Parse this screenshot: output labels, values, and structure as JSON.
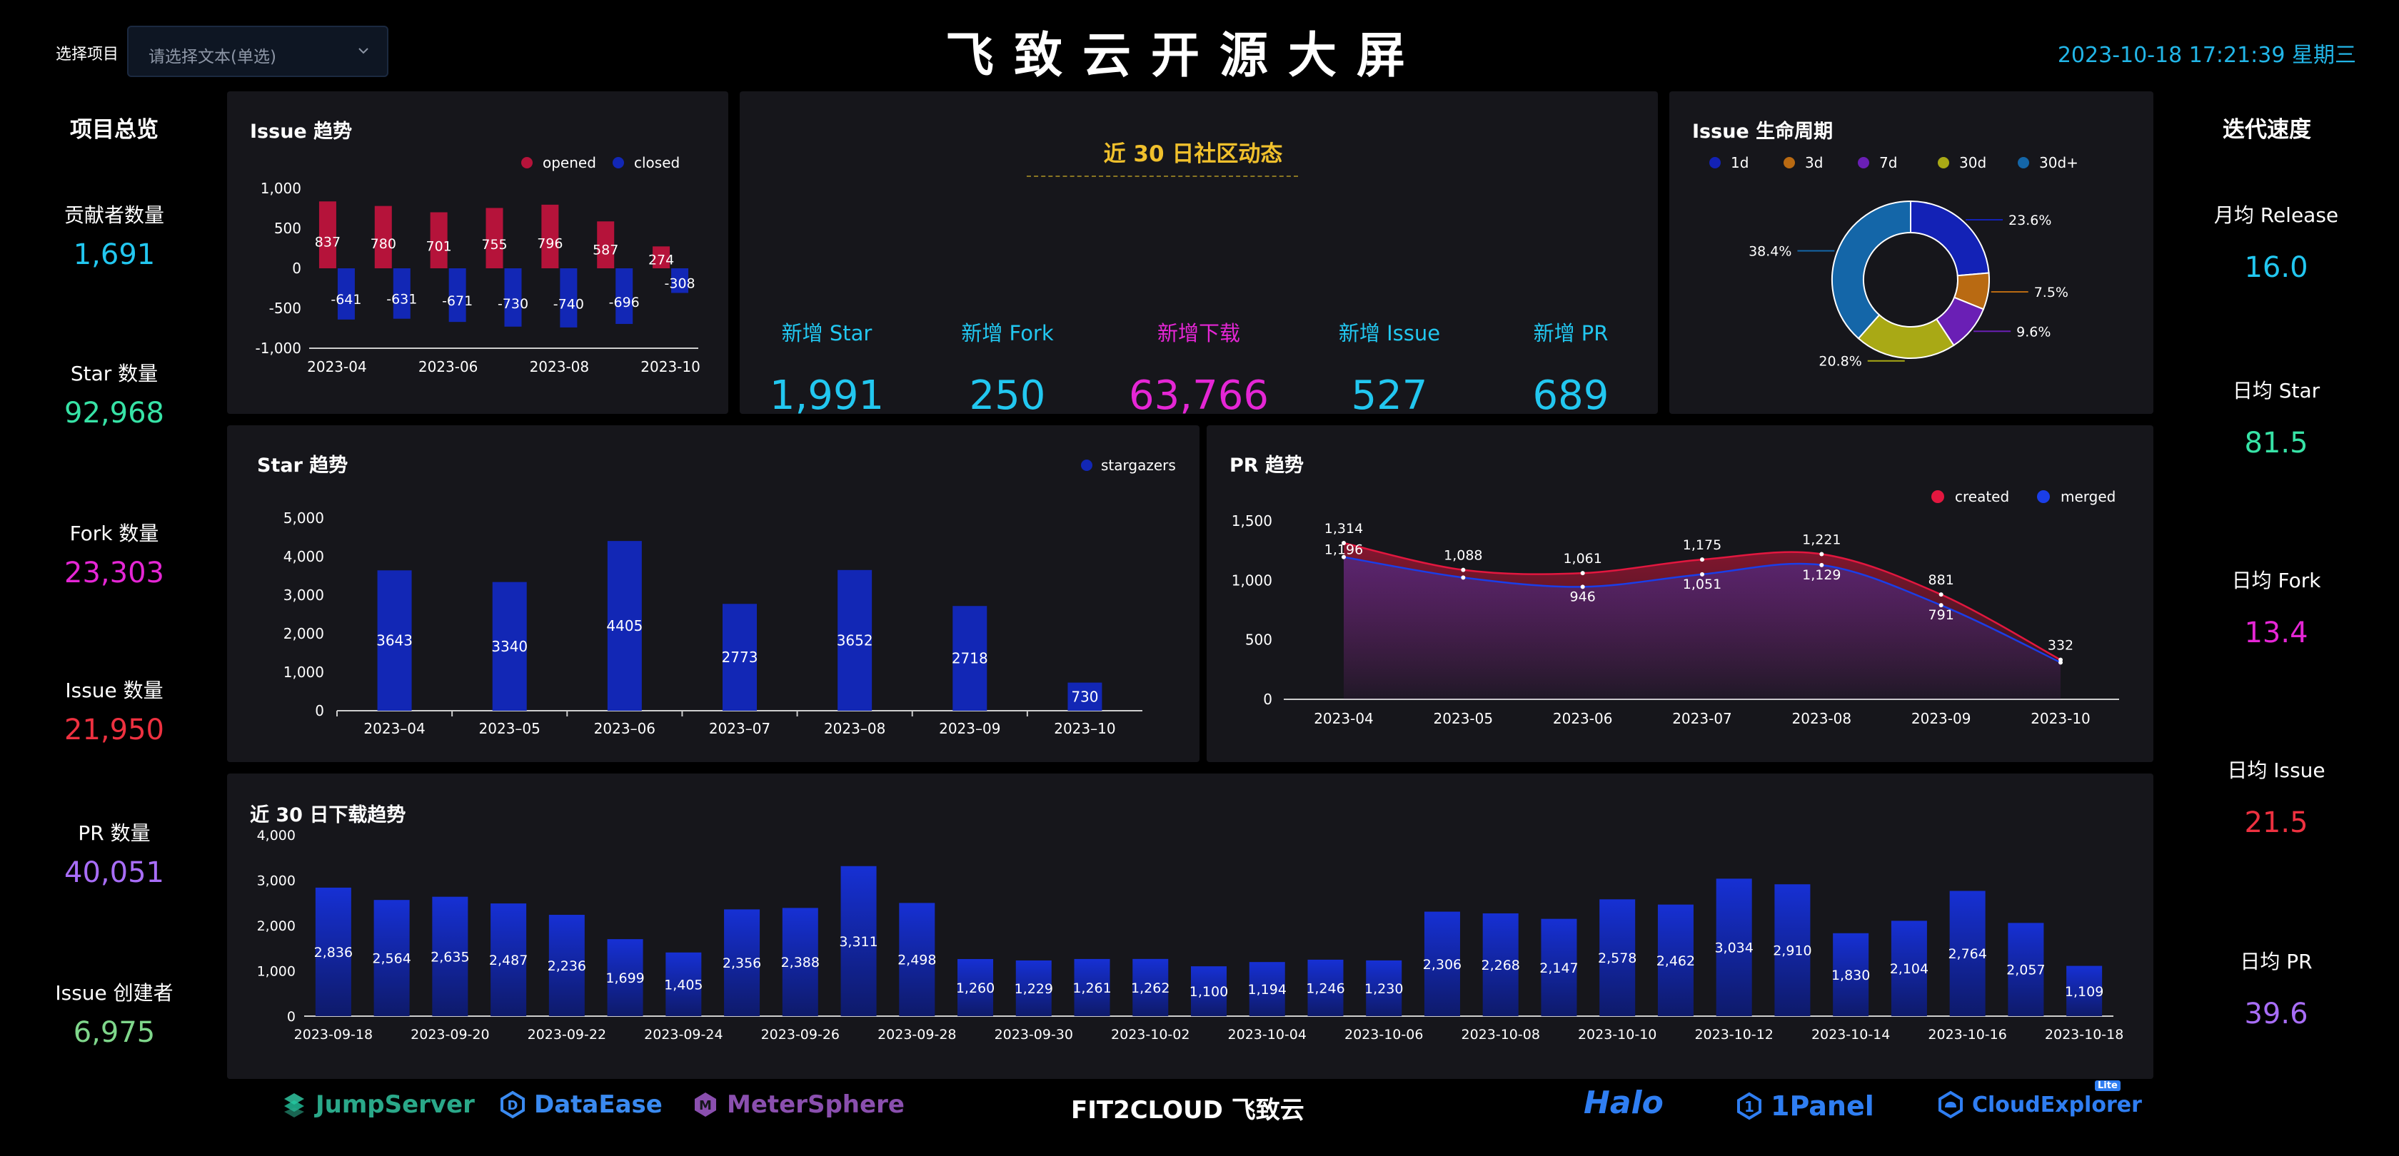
{
  "header": {
    "select_label": "选择项目",
    "select_placeholder": "请选择文本(单选)",
    "title": "飞致云开源大屏",
    "datetime": "2023-10-18 17:21:39 星期三"
  },
  "left_sidebar": {
    "heading": "项目总览",
    "stats": [
      {
        "label": "贡献者数量",
        "value": "1,691",
        "color": "#22c7f0"
      },
      {
        "label": "Star 数量",
        "value": "92,968",
        "color": "#37e3a6"
      },
      {
        "label": "Fork 数量",
        "value": "23,303",
        "color": "#e526d5"
      },
      {
        "label": "Issue 数量",
        "value": "21,950",
        "color": "#ee3140"
      },
      {
        "label": "PR 数量",
        "value": "40,051",
        "color": "#a86df8"
      },
      {
        "label": "Issue 创建者",
        "value": "6,975",
        "color": "#7fd78b"
      }
    ]
  },
  "right_sidebar": {
    "heading": "迭代速度",
    "stats": [
      {
        "label": "月均 Release",
        "value": "16.0",
        "color": "#22c7f0"
      },
      {
        "label": "日均 Star",
        "value": "81.5",
        "color": "#37e3a6"
      },
      {
        "label": "日均 Fork",
        "value": "13.4",
        "color": "#e526d5"
      },
      {
        "label": "日均 Issue",
        "value": "21.5",
        "color": "#ee3140"
      },
      {
        "label": "日均 PR",
        "value": "39.6",
        "color": "#a86df8"
      }
    ]
  },
  "community": {
    "title": "近 30 日社区动态",
    "items": [
      {
        "label": "新增 Star",
        "value": "1,991",
        "color": "#22c7f0"
      },
      {
        "label": "新增 Fork",
        "value": "250",
        "color": "#22c7f0"
      },
      {
        "label": "新增下载",
        "value": "63,766",
        "color": "#e526d5"
      },
      {
        "label": "新增 Issue",
        "value": "527",
        "color": "#22c7f0"
      },
      {
        "label": "新增 PR",
        "value": "689",
        "color": "#22c7f0"
      }
    ]
  },
  "footer": {
    "brands": [
      "JumpServer",
      "DataEase",
      "MeterSphere",
      "FIT2CLOUD 飞致云",
      "Halo",
      "1Panel",
      "CloudExplorer"
    ],
    "lite_badge": "Lite"
  },
  "chart_data": [
    {
      "id": "issue-trend",
      "type": "bar",
      "title": "Issue 趋势",
      "x_tick_labels": [
        "2023-04",
        "2023-06",
        "2023-08",
        "2023-10"
      ],
      "categories": [
        "2023-04",
        "2023-05",
        "2023-06",
        "2023-07",
        "2023-08",
        "2023-09",
        "2023-10"
      ],
      "series": [
        {
          "name": "opened",
          "color": "#b5133a",
          "values": [
            837,
            780,
            701,
            755,
            796,
            587,
            274
          ]
        },
        {
          "name": "closed",
          "color": "#1227b5",
          "values": [
            -641,
            -631,
            -671,
            -730,
            -740,
            -696,
            -308
          ]
        }
      ],
      "yticks": [
        "1,000",
        "500",
        "0",
        "-500",
        "-1,000"
      ],
      "ylim": [
        -1000,
        1000
      ],
      "legend": "top-right"
    },
    {
      "id": "issue-lifecycle",
      "type": "pie",
      "title": "Issue 生命周期",
      "labels": [
        "1d",
        "3d",
        "7d",
        "30d",
        "30d+"
      ],
      "colors": [
        "#1322b6",
        "#b96a12",
        "#6a1fb5",
        "#a9a915",
        "#1466a8"
      ],
      "values": [
        23.6,
        7.5,
        9.6,
        20.8,
        38.4
      ],
      "value_labels": [
        "23.6%",
        "7.5%",
        "9.6%",
        "20.8%",
        "38.4%"
      ],
      "legend": "top"
    },
    {
      "id": "star-trend",
      "type": "bar",
      "title": "Star 趋势",
      "categories": [
        "2023–04",
        "2023–05",
        "2023–06",
        "2023–07",
        "2023–08",
        "2023–09",
        "2023–10"
      ],
      "series": [
        {
          "name": "stargazers",
          "color": "#1227b5",
          "values": [
            3643,
            3340,
            4405,
            2773,
            3652,
            2718,
            730
          ]
        }
      ],
      "yticks": [
        "5,000",
        "4,000",
        "3,000",
        "2,000",
        "1,000",
        "0"
      ],
      "ylim": [
        0,
        5000
      ],
      "legend": "top-right"
    },
    {
      "id": "pr-trend",
      "type": "area",
      "title": "PR 趋势",
      "categories": [
        "2023-04",
        "2023-05",
        "2023-06",
        "2023-07",
        "2023-08",
        "2023-09",
        "2023-10"
      ],
      "series": [
        {
          "name": "created",
          "color": "#e2173f",
          "values": [
            1314,
            1088,
            1061,
            1175,
            1221,
            881,
            332
          ],
          "labels": [
            "1,314",
            "1,088",
            "1,061",
            "1,175",
            "1,221",
            "881",
            "332"
          ]
        },
        {
          "name": "merged",
          "color": "#1a3ee8",
          "values": [
            1196,
            1024,
            946,
            1051,
            1129,
            791,
            310
          ],
          "labels": [
            "1,196",
            "",
            "946",
            "1,051",
            "1,129",
            "791",
            ""
          ]
        }
      ],
      "yticks": [
        "1,500",
        "1,000",
        "500",
        "0"
      ],
      "ylim": [
        0,
        1500
      ],
      "legend": "top-right"
    },
    {
      "id": "download-trend",
      "type": "bar",
      "title": "近 30 日下载趋势",
      "categories": [
        "2023-09-18",
        "2023-09-19",
        "2023-09-20",
        "2023-09-21",
        "2023-09-22",
        "2023-09-23",
        "2023-09-24",
        "2023-09-25",
        "2023-09-26",
        "2023-09-27",
        "2023-09-28",
        "2023-09-29",
        "2023-09-30",
        "2023-10-01",
        "2023-10-02",
        "2023-10-03",
        "2023-10-04",
        "2023-10-05",
        "2023-10-06",
        "2023-10-07",
        "2023-10-08",
        "2023-10-09",
        "2023-10-10",
        "2023-10-11",
        "2023-10-12",
        "2023-10-13",
        "2023-10-14",
        "2023-10-15",
        "2023-10-16",
        "2023-10-17",
        "2023-10-18"
      ],
      "x_tick_labels": [
        "2023-09-18",
        "2023-09-20",
        "2023-09-22",
        "2023-09-24",
        "2023-09-26",
        "2023-09-28",
        "2023-09-30",
        "2023-10-02",
        "2023-10-04",
        "2023-10-06",
        "2023-10-08",
        "2023-10-10",
        "2023-10-12",
        "2023-10-14",
        "2023-10-16",
        "2023-10-18"
      ],
      "series": [
        {
          "name": "downloads",
          "color": "#1227b5",
          "values": [
            2836,
            2564,
            2635,
            2487,
            2236,
            1699,
            1405,
            2356,
            2388,
            3311,
            2498,
            1260,
            1229,
            1261,
            1262,
            1100,
            1194,
            1246,
            1230,
            2306,
            2268,
            2147,
            2578,
            2462,
            3034,
            2910,
            1830,
            2104,
            2764,
            2057,
            1109
          ]
        }
      ],
      "yticks": [
        "4,000",
        "3,000",
        "2,000",
        "1,000",
        "0"
      ],
      "ylim": [
        0,
        4000
      ]
    }
  ]
}
